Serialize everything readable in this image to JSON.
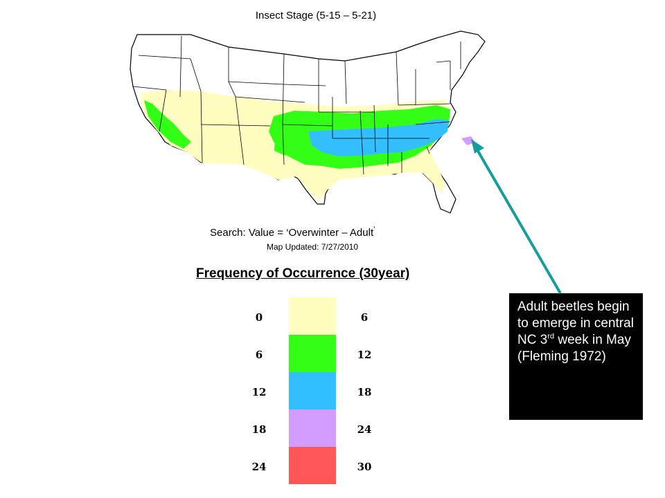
{
  "map": {
    "title": "Insect Stage (5-15 – 5-21)",
    "search_prefix": "Search: Value = ",
    "search_value": "‘Overwinter – Adult",
    "search_close": "’",
    "updated": "Map Updated: 7/27/2010",
    "zone_colors": {
      "0-6": "#FFFDC0",
      "6-12": "#33FF16",
      "12-18": "#33BEFF",
      "18-24": "#D39CFF",
      "24-30": "#FF5757"
    }
  },
  "legend": {
    "title": "Frequency of Occurrence (30year)",
    "rows": [
      {
        "low": "0",
        "high": "6",
        "color": "#FFFDC0"
      },
      {
        "low": "6",
        "high": "12",
        "color": "#33FF16"
      },
      {
        "low": "12",
        "high": "18",
        "color": "#33BEFF"
      },
      {
        "low": "18",
        "high": "24",
        "color": "#D39CFF"
      },
      {
        "low": "24",
        "high": "30",
        "color": "#FF5757"
      }
    ]
  },
  "note": {
    "text_before": "Adult beetles begin to emerge in central NC 3",
    "superscript": "rd",
    "text_after": " week in May (Fleming 1972)",
    "arrow_color": "#179C9C"
  }
}
